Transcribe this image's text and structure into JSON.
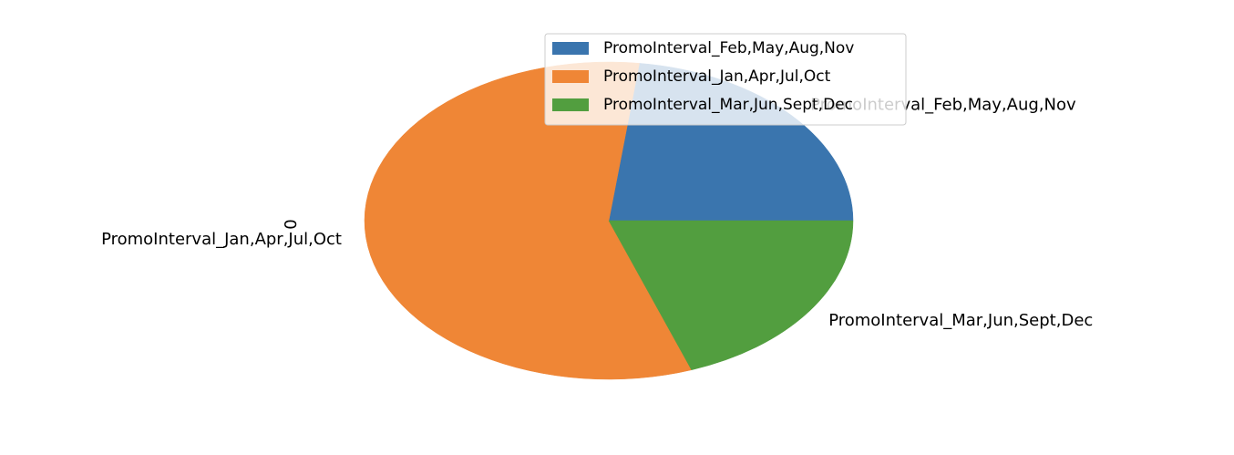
{
  "chart_data": {
    "type": "pie",
    "title": "",
    "ylabel": "0",
    "start_angle": 0,
    "direction": "counterclockwise",
    "aspect": "non-equal",
    "legend_placement": "upper-center",
    "slices": [
      {
        "label": "PromoInterval_Feb,May,Aug,Nov",
        "value": 23.0,
        "color": "#3a75ae"
      },
      {
        "label": "PromoInterval_Jan,Apr,Jul,Oct",
        "value": 57.5,
        "color": "#ef8636"
      },
      {
        "label": "PromoInterval_Mar,Jun,Sept,Dec",
        "value": 19.5,
        "color": "#529e3f"
      }
    ]
  }
}
